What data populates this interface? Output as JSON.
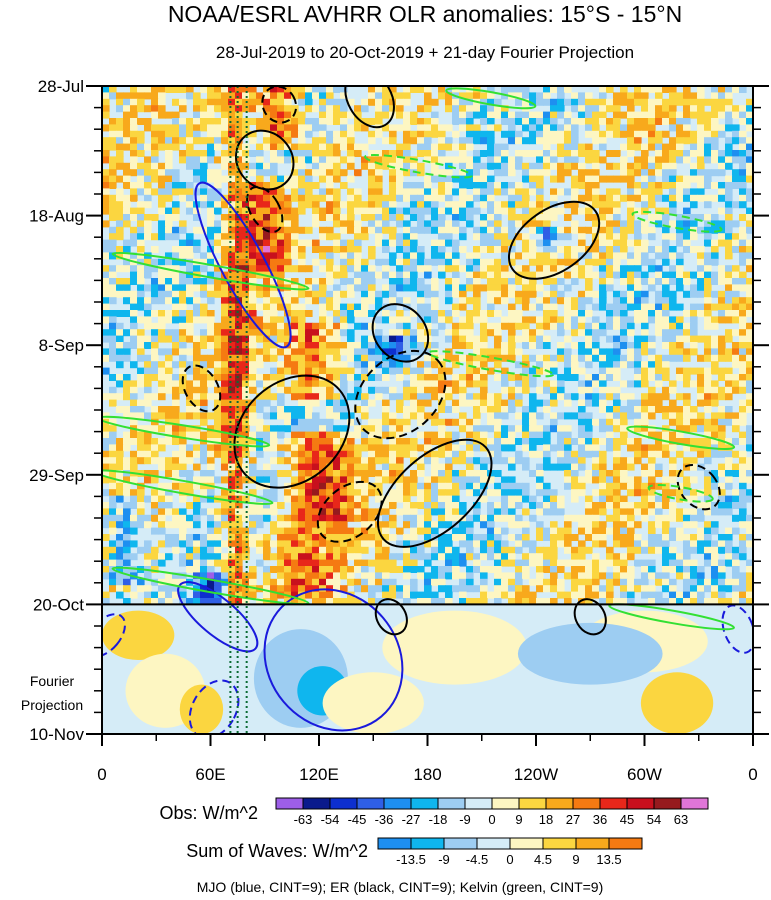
{
  "chart_data": {
    "type": "heatmap",
    "title": "NOAA/ESRL AVHRR OLR anomalies: 15°S - 15°N",
    "subtitle": "28-Jul-2019 to 20-Oct-2019 + 21-day Fourier Projection",
    "y_ticks": [
      "28-Jul",
      "18-Aug",
      "8-Sep",
      "29-Sep",
      "20-Oct",
      "10-Nov"
    ],
    "y_tick_days": [
      0,
      21,
      42,
      63,
      84,
      105
    ],
    "y_range_days": [
      0,
      105
    ],
    "x_ticks": [
      "0",
      "60E",
      "120E",
      "180",
      "120W",
      "60W",
      "0"
    ],
    "x_tick_lon": [
      0,
      60,
      120,
      180,
      240,
      300,
      360
    ],
    "x_range_lon": [
      0,
      360
    ],
    "projection_label": [
      "Fourier",
      "Projection"
    ],
    "projection_start_day": 84,
    "obs_colorbar": {
      "label": "Obs: W/m^2",
      "levels": [
        "-63",
        "-54",
        "-45",
        "-36",
        "-27",
        "-18",
        "-9",
        "0",
        "9",
        "18",
        "27",
        "36",
        "45",
        "54",
        "63"
      ],
      "colors": [
        "#9d5ee8",
        "#0a1a8c",
        "#0d2fcf",
        "#2f5fe6",
        "#1e8ff0",
        "#0fb6ee",
        "#9dcdf2",
        "#d5ecf7",
        "#fdf6c2",
        "#fbd640",
        "#f8a91c",
        "#f57a12",
        "#e8271a",
        "#c8101d",
        "#961a1e",
        "#e075d8"
      ]
    },
    "waves_colorbar": {
      "label": "Sum of Waves: W/m^2",
      "levels": [
        "-13.5",
        "-9",
        "-4.5",
        "0",
        "4.5",
        "9",
        "13.5"
      ],
      "colors": [
        "#1e8ff0",
        "#0fb6ee",
        "#9dcdf2",
        "#d5ecf7",
        "#fdf6c2",
        "#fbd640",
        "#f8a91c",
        "#f57a12"
      ]
    },
    "contour_legend": "MJO (blue, CINT=9); ER (black, CINT=9); Kelvin (green, CINT=9)",
    "reference_lines_lon": [
      71,
      75,
      80
    ],
    "obs_field": [
      {
        "lon": 72,
        "day_start": 0,
        "day_end": 84,
        "width_lon": 10,
        "anomaly": 36
      },
      {
        "lon": 95,
        "day_start": 0,
        "day_end": 10,
        "width_lon": 14,
        "anomaly": 45
      },
      {
        "lon": 88,
        "day_start": 15,
        "day_end": 30,
        "width_lon": 14,
        "anomaly": 45
      },
      {
        "lon": 115,
        "day_start": 38,
        "day_end": 50,
        "width_lon": 18,
        "anomaly": 36
      },
      {
        "lon": 118,
        "day_start": 55,
        "day_end": 70,
        "width_lon": 22,
        "anomaly": 45
      },
      {
        "lon": 110,
        "day_start": 70,
        "day_end": 82,
        "width_lon": 22,
        "anomaly": 27
      },
      {
        "lon": 60,
        "day_start": 78,
        "day_end": 84,
        "width_lon": 10,
        "anomaly": -54
      },
      {
        "lon": 10,
        "day_start": 66,
        "day_end": 80,
        "width_lon": 12,
        "anomaly": -27
      },
      {
        "lon": 160,
        "day_start": 40,
        "day_end": 45,
        "width_lon": 10,
        "anomaly": -36
      },
      {
        "lon": 245,
        "day_start": 22,
        "day_end": 26,
        "width_lon": 10,
        "anomaly": -36
      }
    ],
    "mjo_contours": [
      {
        "kind": "solid",
        "lon": 78,
        "day": 29,
        "rx_lon": 12,
        "ry_day": 15,
        "angle": -28,
        "label": "MJO"
      },
      {
        "kind": "solid",
        "lon": 128,
        "day": 93,
        "rx_lon": 36,
        "ry_day": 12,
        "angle": -40,
        "label": "MJO"
      },
      {
        "kind": "solid",
        "lon": 64,
        "day": 86,
        "rx_lon": 10,
        "ry_day": 8,
        "angle": -50,
        "label": "MJO"
      },
      {
        "kind": "dashed",
        "lon": 62,
        "day": 101,
        "rx_lon": 12,
        "ry_day": 5,
        "angle": 30,
        "label": "MJO"
      },
      {
        "kind": "dashed",
        "lon": 2,
        "day": 89,
        "rx_lon": 8,
        "ry_day": 4,
        "angle": 40,
        "label": "MJO"
      },
      {
        "kind": "dashed",
        "lon": 352,
        "day": 88,
        "rx_lon": 8,
        "ry_day": 4,
        "angle": -20,
        "label": "MJO"
      }
    ],
    "er_contours": [
      {
        "kind": "solid",
        "lon": 148,
        "day": 2,
        "rx_lon": 12,
        "ry_day": 5,
        "angle": -30,
        "label": "ER"
      },
      {
        "kind": "solid",
        "lon": 90,
        "day": 12,
        "rx_lon": 15,
        "ry_day": 5,
        "angle": -40,
        "label": "ER"
      },
      {
        "kind": "solid",
        "lon": 250,
        "day": 25,
        "rx_lon": 28,
        "ry_day": 5,
        "angle": -35,
        "label": "ER"
      },
      {
        "kind": "solid",
        "lon": 165,
        "day": 40,
        "rx_lon": 14,
        "ry_day": 5,
        "angle": -40,
        "label": "ER"
      },
      {
        "kind": "solid",
        "lon": 105,
        "day": 56,
        "rx_lon": 35,
        "ry_day": 8,
        "angle": -42,
        "label": "ER"
      },
      {
        "kind": "solid",
        "lon": 184,
        "day": 66,
        "rx_lon": 38,
        "ry_day": 6,
        "angle": -42,
        "label": "ER"
      },
      {
        "kind": "dashed",
        "lon": 90,
        "day": 20,
        "rx_lon": 8,
        "ry_day": 4,
        "angle": -30,
        "label": "ER"
      },
      {
        "kind": "dashed",
        "lon": 165,
        "day": 50,
        "rx_lon": 28,
        "ry_day": 6,
        "angle": -42,
        "label": "ER"
      },
      {
        "kind": "dashed",
        "lon": 137,
        "day": 69,
        "rx_lon": 20,
        "ry_day": 4,
        "angle": -40,
        "label": "ER"
      },
      {
        "kind": "dashed",
        "lon": 55,
        "day": 49,
        "rx_lon": 9,
        "ry_day": 4,
        "angle": -30,
        "label": "ER"
      },
      {
        "kind": "dashed",
        "lon": 98,
        "day": 3,
        "rx_lon": 9,
        "ry_day": 3,
        "angle": -30,
        "label": "ER"
      },
      {
        "kind": "solid",
        "lon": 270,
        "day": 86,
        "rx_lon": 8,
        "ry_day": 3,
        "angle": -30,
        "label": "ER"
      },
      {
        "kind": "solid",
        "lon": 160,
        "day": 86,
        "rx_lon": 8,
        "ry_day": 3,
        "angle": -30,
        "label": "ER"
      },
      {
        "kind": "dashed",
        "lon": 330,
        "day": 65,
        "rx_lon": 10,
        "ry_day": 4,
        "angle": -40,
        "label": "ER"
      }
    ],
    "kelvin_contours": [
      {
        "kind": "solid",
        "lon": 45,
        "day": 56,
        "rx_lon": 48,
        "ry_day": 1,
        "angle": 9,
        "label": "Kelvin"
      },
      {
        "kind": "solid",
        "lon": 45,
        "day": 65,
        "rx_lon": 50,
        "ry_day": 1,
        "angle": 10,
        "label": "Kelvin"
      },
      {
        "kind": "solid",
        "lon": 60,
        "day": 30,
        "rx_lon": 55,
        "ry_day": 1,
        "angle": 10,
        "label": "Kelvin"
      },
      {
        "kind": "solid",
        "lon": 60,
        "day": 81,
        "rx_lon": 55,
        "ry_day": 1,
        "angle": 10,
        "label": "Kelvin"
      },
      {
        "kind": "solid",
        "lon": 320,
        "day": 57,
        "rx_lon": 30,
        "ry_day": 1,
        "angle": 10,
        "label": "Kelvin"
      },
      {
        "kind": "solid",
        "lon": 215,
        "day": 2,
        "rx_lon": 25,
        "ry_day": 1,
        "angle": 10,
        "label": "Kelvin"
      },
      {
        "kind": "solid",
        "lon": 315,
        "day": 86,
        "rx_lon": 35,
        "ry_day": 1,
        "angle": 10,
        "label": "Kelvin"
      },
      {
        "kind": "dashed",
        "lon": 175,
        "day": 13,
        "rx_lon": 30,
        "ry_day": 1,
        "angle": 10,
        "label": "Kelvin"
      },
      {
        "kind": "dashed",
        "lon": 215,
        "day": 45,
        "rx_lon": 35,
        "ry_day": 1,
        "angle": 10,
        "label": "Kelvin"
      },
      {
        "kind": "dashed",
        "lon": 318,
        "day": 22,
        "rx_lon": 25,
        "ry_day": 1,
        "angle": 10,
        "label": "Kelvin"
      },
      {
        "kind": "dashed",
        "lon": 320,
        "day": 66,
        "rx_lon": 18,
        "ry_day": 1,
        "angle": 10,
        "label": "Kelvin"
      }
    ]
  }
}
